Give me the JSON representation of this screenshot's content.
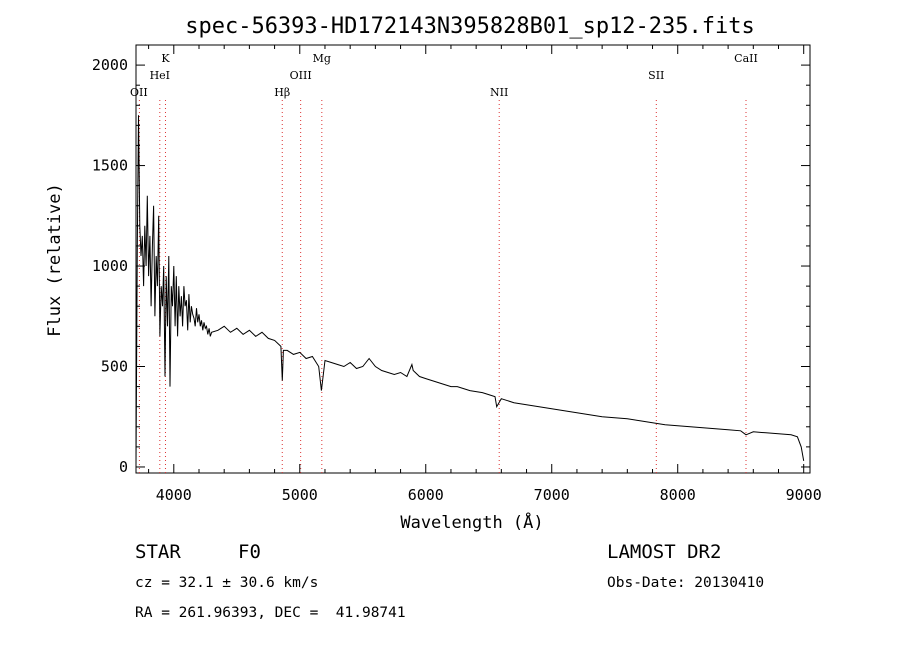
{
  "chart_data": {
    "type": "line",
    "title": "spec-56393-HD172143N395828B01_sp12-235.fits",
    "xlabel": "Wavelength (Å)",
    "ylabel": "Flux (relative)",
    "xlim": [
      3700,
      9050
    ],
    "ylim": [
      -30,
      2100
    ],
    "x_ticks": [
      4000,
      5000,
      6000,
      7000,
      8000,
      9000
    ],
    "y_ticks": [
      0,
      500,
      1000,
      1500,
      2000
    ],
    "grid": false,
    "series": [
      {
        "x": [
          3700,
          3710,
          3720,
          3730,
          3740,
          3750,
          3760,
          3770,
          3780,
          3790,
          3800,
          3810,
          3820,
          3830,
          3840,
          3850,
          3860,
          3870,
          3880,
          3890,
          3900,
          3910,
          3920,
          3930,
          3940,
          3950,
          3960,
          3970,
          3980,
          3990,
          4000,
          4010,
          4020,
          4030,
          4040,
          4050,
          4060,
          4070,
          4080,
          4090,
          4100,
          4110,
          4120,
          4130,
          4140,
          4150,
          4160,
          4170,
          4180,
          4190,
          4200,
          4210,
          4220,
          4230,
          4240,
          4250,
          4260,
          4270,
          4280,
          4290,
          4300,
          4350,
          4400,
          4450,
          4500,
          4550,
          4600,
          4650,
          4700,
          4750,
          4800,
          4850,
          4861,
          4870,
          4900,
          4950,
          5000,
          5050,
          5100,
          5150,
          5172,
          5200,
          5250,
          5300,
          5350,
          5400,
          5450,
          5500,
          5550,
          5600,
          5650,
          5700,
          5750,
          5800,
          5850,
          5890,
          5900,
          5950,
          6000,
          6050,
          6100,
          6150,
          6200,
          6250,
          6300,
          6350,
          6400,
          6450,
          6500,
          6550,
          6563,
          6600,
          6650,
          6700,
          6800,
          6900,
          7000,
          7100,
          7200,
          7300,
          7400,
          7500,
          7600,
          7700,
          7800,
          7900,
          8000,
          8100,
          8200,
          8300,
          8400,
          8500,
          8542,
          8600,
          8700,
          8800,
          8900,
          8950,
          8980,
          9000
        ],
        "y": [
          10,
          1100,
          1750,
          1200,
          1050,
          1150,
          900,
          1200,
          1000,
          1350,
          950,
          1150,
          800,
          1100,
          1300,
          750,
          1050,
          900,
          1250,
          650,
          900,
          800,
          1000,
          450,
          950,
          700,
          1050,
          400,
          900,
          800,
          1000,
          700,
          950,
          650,
          900,
          750,
          850,
          700,
          900,
          800,
          830,
          680,
          860,
          720,
          800,
          760,
          740,
          700,
          790,
          720,
          760,
          700,
          730,
          680,
          720,
          690,
          700,
          660,
          690,
          650,
          670,
          680,
          700,
          670,
          690,
          660,
          680,
          650,
          670,
          640,
          630,
          600,
          430,
          580,
          580,
          560,
          570,
          540,
          550,
          500,
          380,
          530,
          520,
          510,
          500,
          520,
          490,
          500,
          540,
          500,
          480,
          470,
          460,
          470,
          450,
          510,
          480,
          450,
          440,
          430,
          420,
          410,
          400,
          400,
          390,
          380,
          375,
          370,
          360,
          350,
          300,
          340,
          330,
          320,
          310,
          300,
          290,
          280,
          270,
          260,
          250,
          245,
          240,
          230,
          220,
          210,
          205,
          200,
          195,
          190,
          185,
          180,
          160,
          175,
          170,
          165,
          160,
          150,
          100,
          30
        ]
      }
    ],
    "lines": [
      {
        "label": "OII",
        "wavelength": 3727
      },
      {
        "label": "K",
        "wavelength": 3934
      },
      {
        "label": "HeI",
        "wavelength": 3889
      },
      {
        "label": "Hβ",
        "wavelength": 4861
      },
      {
        "label": "OIII",
        "wavelength": 5007
      },
      {
        "label": "Mg",
        "wavelength": 5175
      },
      {
        "label": "NII",
        "wavelength": 6583
      },
      {
        "label": "SII",
        "wavelength": 7830
      },
      {
        "label": "CaII",
        "wavelength": 8542
      }
    ]
  },
  "info": {
    "class_label": "STAR",
    "subclass_label": "F0",
    "survey_label": "LAMOST DR2",
    "cz_text": "cz = 32.1 ± 30.6 km/s",
    "obs_date_text": "Obs-Date: 20130410",
    "coords_text": "RA = 261.96393, DEC =  41.98741"
  }
}
